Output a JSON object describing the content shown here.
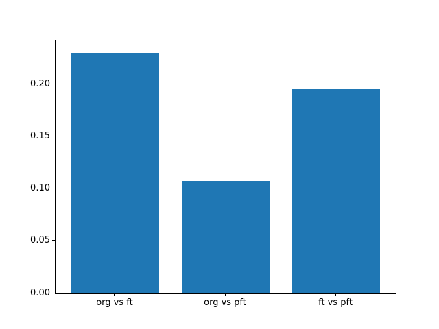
{
  "chart_data": {
    "type": "bar",
    "categories": [
      "org vs ft",
      "org vs pft",
      "ft vs pft"
    ],
    "values": [
      0.231,
      0.108,
      0.196
    ],
    "bar_color": "#1f77b4",
    "title": "",
    "xlabel": "",
    "ylabel": "",
    "ylim": [
      0,
      0.2425
    ],
    "xlim": [
      -0.54,
      2.54
    ],
    "bar_width_data_units": 0.8,
    "yticks": [
      0.0,
      0.05,
      0.1,
      0.15,
      0.2
    ],
    "ytick_labels": [
      "0.00",
      "0.05",
      "0.10",
      "0.15",
      "0.20"
    ],
    "grid": false,
    "legend": null,
    "background_color": "#ffffff",
    "spine_color": "#000000"
  }
}
